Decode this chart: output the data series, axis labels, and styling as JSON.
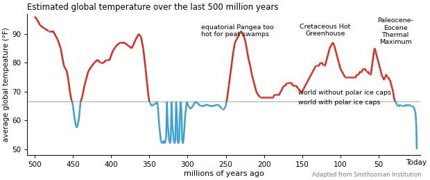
{
  "title": "Estimated global temperature over the last 500 million years",
  "xlabel": "millions of years ago",
  "ylabel": "average global tempeature (°F)",
  "attribution": "Adapted from Smithsonian Institution",
  "reference_line_y": 66.5,
  "ylim": [
    48,
    97
  ],
  "xlim": [
    510,
    -5
  ],
  "yticks": [
    50,
    60,
    70,
    80,
    90
  ],
  "xticks": [
    500,
    450,
    400,
    350,
    300,
    250,
    200,
    150,
    100,
    50
  ],
  "xtick_labels": [
    "500",
    "450",
    "400",
    "350",
    "300",
    "250",
    "200",
    "150",
    "100",
    "50"
  ],
  "today_label": "Today",
  "red_color": "#d9291c",
  "blue_color": "#3a9fd4",
  "ref_line_color": "#b0b0b0",
  "curve": [
    [
      500,
      96
    ],
    [
      497,
      95
    ],
    [
      493,
      93
    ],
    [
      488,
      92
    ],
    [
      482,
      91
    ],
    [
      476,
      91
    ],
    [
      470,
      88
    ],
    [
      466,
      85
    ],
    [
      462,
      79
    ],
    [
      460,
      78
    ],
    [
      458,
      77
    ],
    [
      456,
      74
    ],
    [
      454,
      70
    ],
    [
      452,
      67
    ],
    [
      451,
      66.5
    ],
    [
      450,
      65
    ],
    [
      448,
      61
    ],
    [
      446,
      58
    ],
    [
      445,
      57.5
    ],
    [
      444,
      58
    ],
    [
      442,
      61
    ],
    [
      441,
      64
    ],
    [
      440,
      66.5
    ],
    [
      438,
      68
    ],
    [
      435,
      72
    ],
    [
      430,
      77
    ],
    [
      425,
      79
    ],
    [
      422,
      80
    ],
    [
      418,
      81
    ],
    [
      414,
      80
    ],
    [
      410,
      80
    ],
    [
      406,
      81
    ],
    [
      402,
      81
    ],
    [
      398,
      84
    ],
    [
      393,
      86
    ],
    [
      388,
      87
    ],
    [
      383,
      87
    ],
    [
      378,
      86
    ],
    [
      373,
      85
    ],
    [
      368,
      88
    ],
    [
      364,
      90
    ],
    [
      361,
      89
    ],
    [
      358,
      85
    ],
    [
      355,
      78
    ],
    [
      353,
      73
    ],
    [
      351,
      68
    ],
    [
      350,
      66.5
    ],
    [
      349,
      66
    ],
    [
      347,
      65
    ],
    [
      344,
      65.5
    ],
    [
      341,
      66
    ],
    [
      340,
      66.5
    ],
    [
      339,
      65
    ],
    [
      337,
      58
    ],
    [
      335,
      53
    ],
    [
      333,
      52
    ],
    [
      331,
      53
    ],
    [
      330,
      52
    ],
    [
      328,
      54
    ],
    [
      327,
      66.5
    ],
    [
      326,
      59
    ],
    [
      324,
      53
    ],
    [
      323,
      52
    ],
    [
      322,
      53
    ],
    [
      321,
      66.5
    ],
    [
      320,
      59
    ],
    [
      318,
      53
    ],
    [
      317,
      52
    ],
    [
      316,
      53
    ],
    [
      315,
      66.5
    ],
    [
      314,
      62
    ],
    [
      313,
      53
    ],
    [
      312,
      52
    ],
    [
      311,
      53
    ],
    [
      310,
      62
    ],
    [
      309,
      66.5
    ],
    [
      308,
      63
    ],
    [
      307,
      53
    ],
    [
      306,
      52
    ],
    [
      305,
      54
    ],
    [
      303,
      62
    ],
    [
      301,
      66.5
    ],
    [
      299,
      65
    ],
    [
      296,
      64
    ],
    [
      293,
      65
    ],
    [
      290,
      66.5
    ],
    [
      287,
      66
    ],
    [
      283,
      65
    ],
    [
      279,
      65
    ],
    [
      275,
      65.5
    ],
    [
      271,
      65
    ],
    [
      266,
      65
    ],
    [
      261,
      65.5
    ],
    [
      258,
      65
    ],
    [
      255,
      64
    ],
    [
      252,
      64
    ],
    [
      250,
      65
    ],
    [
      249,
      66.5
    ],
    [
      248,
      68
    ],
    [
      246,
      72
    ],
    [
      244,
      76
    ],
    [
      242,
      80
    ],
    [
      240,
      84
    ],
    [
      238,
      87
    ],
    [
      236,
      88
    ],
    [
      234,
      89
    ],
    [
      232,
      90
    ],
    [
      230,
      91
    ],
    [
      228,
      90
    ],
    [
      226,
      89
    ],
    [
      224,
      87
    ],
    [
      222,
      84
    ],
    [
      220,
      81
    ],
    [
      218,
      79
    ],
    [
      216,
      76
    ],
    [
      214,
      74
    ],
    [
      212,
      72
    ],
    [
      210,
      70
    ],
    [
      208,
      69
    ],
    [
      205,
      68
    ],
    [
      202,
      68
    ],
    [
      200,
      68
    ],
    [
      198,
      68
    ],
    [
      196,
      68
    ],
    [
      194,
      68
    ],
    [
      192,
      68
    ],
    [
      190,
      68
    ],
    [
      188,
      68
    ],
    [
      186,
      69
    ],
    [
      184,
      69
    ],
    [
      182,
      69
    ],
    [
      180,
      69
    ],
    [
      178,
      70
    ],
    [
      176,
      71
    ],
    [
      174,
      72
    ],
    [
      172,
      72
    ],
    [
      170,
      73
    ],
    [
      168,
      73
    ],
    [
      166,
      73
    ],
    [
      164,
      73
    ],
    [
      162,
      72
    ],
    [
      160,
      72
    ],
    [
      158,
      72
    ],
    [
      155,
      71
    ],
    [
      152,
      70
    ],
    [
      150,
      70
    ],
    [
      148,
      71
    ],
    [
      146,
      72
    ],
    [
      144,
      73
    ],
    [
      142,
      74
    ],
    [
      140,
      75
    ],
    [
      138,
      76
    ],
    [
      136,
      77
    ],
    [
      134,
      78
    ],
    [
      132,
      79
    ],
    [
      130,
      79
    ],
    [
      128,
      79
    ],
    [
      126,
      80
    ],
    [
      124,
      80
    ],
    [
      122,
      79
    ],
    [
      120,
      79
    ],
    [
      118,
      81
    ],
    [
      116,
      83
    ],
    [
      114,
      85
    ],
    [
      112,
      86
    ],
    [
      110,
      87
    ],
    [
      108,
      86
    ],
    [
      106,
      84
    ],
    [
      104,
      82
    ],
    [
      102,
      80
    ],
    [
      100,
      78
    ],
    [
      98,
      77
    ],
    [
      96,
      76
    ],
    [
      94,
      75
    ],
    [
      92,
      75
    ],
    [
      90,
      75
    ],
    [
      88,
      75
    ],
    [
      86,
      75
    ],
    [
      84,
      75
    ],
    [
      82,
      75
    ],
    [
      80,
      75
    ],
    [
      78,
      76
    ],
    [
      76,
      76
    ],
    [
      74,
      77
    ],
    [
      72,
      77
    ],
    [
      70,
      78
    ],
    [
      68,
      78
    ],
    [
      66,
      77
    ],
    [
      64,
      77
    ],
    [
      62,
      76
    ],
    [
      60,
      76
    ],
    [
      58,
      80
    ],
    [
      56,
      84
    ],
    [
      55,
      85
    ],
    [
      54,
      84
    ],
    [
      53,
      83
    ],
    [
      52,
      82
    ],
    [
      51,
      81
    ],
    [
      50,
      80
    ],
    [
      49,
      79
    ],
    [
      48,
      78
    ],
    [
      47,
      77
    ],
    [
      46,
      76
    ],
    [
      45,
      75
    ],
    [
      44,
      75
    ],
    [
      43,
      74
    ],
    [
      42,
      75
    ],
    [
      41,
      75
    ],
    [
      40,
      76
    ],
    [
      39,
      75
    ],
    [
      38,
      75
    ],
    [
      37,
      75
    ],
    [
      36,
      74
    ],
    [
      35,
      74
    ],
    [
      34,
      73
    ],
    [
      33,
      72
    ],
    [
      32,
      71
    ],
    [
      31,
      70
    ],
    [
      30,
      68
    ],
    [
      29,
      67
    ],
    [
      28,
      66.5
    ],
    [
      27,
      66
    ],
    [
      26,
      65.5
    ],
    [
      25,
      65
    ],
    [
      24,
      65
    ],
    [
      23,
      65
    ],
    [
      22,
      65.5
    ],
    [
      21,
      65
    ],
    [
      20,
      65
    ],
    [
      18,
      65
    ],
    [
      16,
      65
    ],
    [
      14,
      65.5
    ],
    [
      12,
      65
    ],
    [
      10,
      65.5
    ],
    [
      8,
      65
    ],
    [
      6,
      65
    ],
    [
      4,
      64.5
    ],
    [
      3,
      64
    ],
    [
      2,
      63
    ],
    [
      1.5,
      62
    ],
    [
      1,
      60
    ],
    [
      0.5,
      57
    ],
    [
      0.2,
      53
    ],
    [
      0.05,
      50
    ]
  ]
}
